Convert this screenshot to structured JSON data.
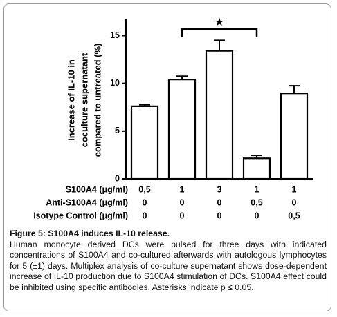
{
  "chart_data": {
    "type": "bar",
    "values": [
      7.6,
      10.4,
      13.4,
      2.15,
      8.95
    ],
    "errors": [
      0.15,
      0.35,
      1.1,
      0.3,
      0.8
    ],
    "color": "#ffffff",
    "edge_color": "#000000",
    "ylabel": [
      "Increase of IL-10 in",
      "coculture supernatant",
      "compared to untreated (%)"
    ],
    "ylim": [
      0,
      16.7
    ],
    "yticks": [
      0,
      5,
      10,
      15
    ],
    "annotation": "★"
  },
  "table": {
    "rows": [
      {
        "label": "S100A4 (μg/ml)",
        "cells": [
          "0,5",
          "1",
          "3",
          "1",
          "1"
        ]
      },
      {
        "label": "Anti-S100A4 (μg/ml)",
        "cells": [
          "0",
          "0",
          "0",
          "0,5",
          "0"
        ]
      },
      {
        "label": "Isotype Control (μg/ml)",
        "cells": [
          "0",
          "0",
          "0",
          "0",
          "0,5"
        ]
      }
    ]
  },
  "caption": {
    "title": "Figure 5: S100A4 induces IL-10 release.",
    "body": "Human monocyte derived DCs were pulsed for three days with indicated concentrations of S100A4 and co-cultured afterwards with autologous lymphocytes for 5 (±1) days. Multiplex analysis of co-culture supernatant shows dose-dependent increase of IL-10 production due to S100A4 stimulation of DCs. S100A4 effect could be inhibited using specific antibodies. Asterisks indicate p ≤ 0.05."
  }
}
